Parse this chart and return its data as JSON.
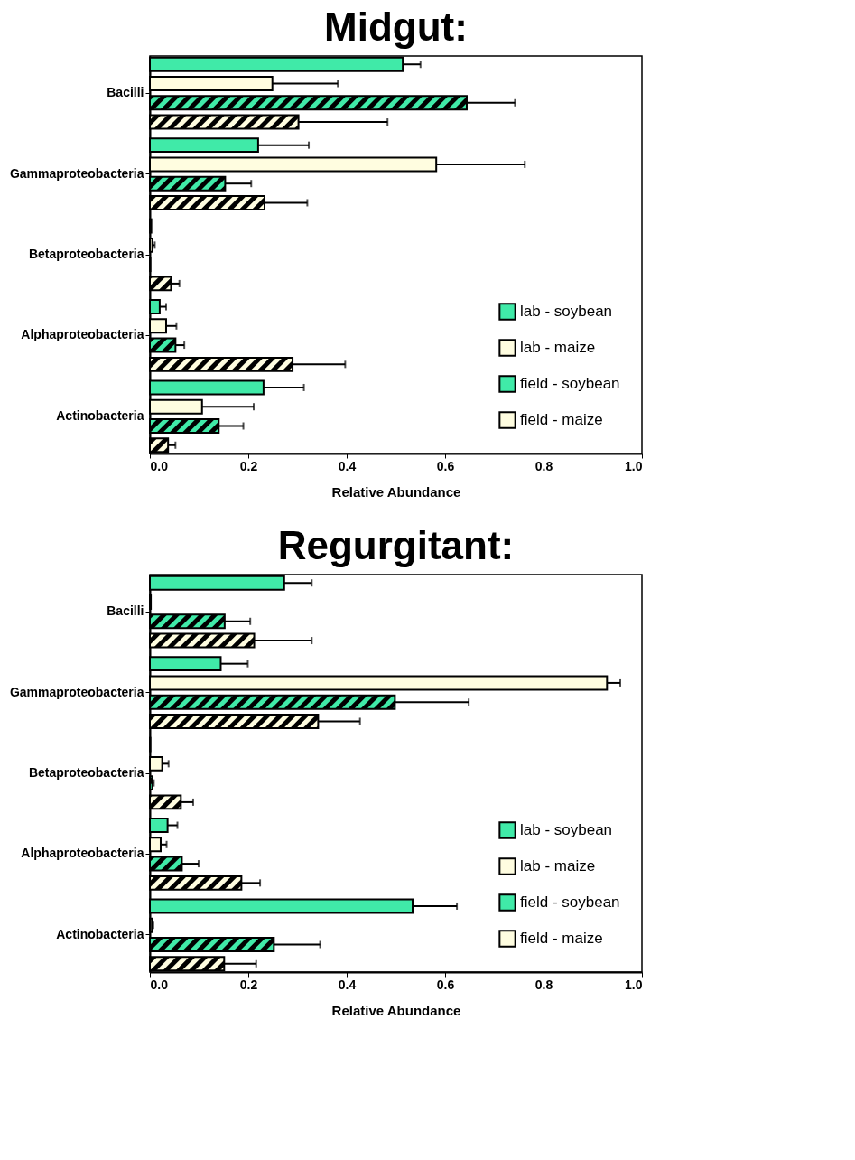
{
  "chart_data": [
    {
      "type": "bar",
      "orientation": "horizontal",
      "title": "Midgut:",
      "xlabel": "Relative Abundance",
      "categories": [
        "Bacilli",
        "Gammaproteobacteria",
        "Betaproteobacteria",
        "Alphaproteobacteria",
        "Actinobacteria"
      ],
      "xlim": [
        0,
        1
      ],
      "xticks": [
        {
          "value": 0,
          "label": "0.0"
        },
        {
          "value": 0.2,
          "label": "0.2"
        },
        {
          "value": 0.4,
          "label": "0.4"
        },
        {
          "value": 0.6,
          "label": "0.6"
        },
        {
          "value": 0.8,
          "label": "0.8"
        },
        {
          "value": 1,
          "label": "1.0"
        }
      ],
      "legend": "bottom right",
      "grid": false,
      "series": [
        {
          "name": "lab - soybean",
          "color": "#40eaa8",
          "values": [
            0.514,
            0.22,
            0.003,
            0.02,
            0.231
          ],
          "errors": [
            [
              0.514,
              0.55
            ],
            [
              0.22,
              0.323
            ],
            null,
            [
              0.02,
              0.033
            ],
            [
              0.231,
              0.313
            ]
          ]
        },
        {
          "name": "lab - maize",
          "color": "#fffde0",
          "values": [
            0.249,
            0.582,
            0.005,
            0.033,
            0.106
          ],
          "errors": [
            [
              0.249,
              0.382
            ],
            [
              0.582,
              0.762
            ],
            [
              0.005,
              0.01
            ],
            [
              0.033,
              0.054
            ],
            [
              0.106,
              0.211
            ]
          ]
        },
        {
          "name": "field - soybean",
          "color": "#40eaa8",
          "values": [
            0.644,
            0.153,
            0.001,
            0.052,
            0.14
          ],
          "errors": [
            [
              0.644,
              0.742
            ],
            [
              0.153,
              0.206
            ],
            null,
            [
              0.052,
              0.07
            ],
            [
              0.14,
              0.19
            ]
          ]
        },
        {
          "name": "field - maize",
          "color": "#fffde0",
          "values": [
            0.302,
            0.233,
            0.043,
            0.29,
            0.037
          ],
          "errors": [
            [
              0.302,
              0.483
            ],
            [
              0.233,
              0.32
            ],
            [
              0.043,
              0.06
            ],
            [
              0.29,
              0.397
            ],
            [
              0.037,
              0.052
            ]
          ]
        }
      ]
    },
    {
      "type": "bar",
      "orientation": "horizontal",
      "title": "Regurgitant:",
      "xlabel": "Relative Abundance",
      "categories": [
        "Bacilli",
        "Gammaproteobacteria",
        "Betaproteobacteria",
        "Alphaproteobacteria",
        "Actinobacteria"
      ],
      "xlim": [
        0,
        1
      ],
      "xticks": [
        {
          "value": 0,
          "label": "0.0"
        },
        {
          "value": 0.2,
          "label": "0.2"
        },
        {
          "value": 0.4,
          "label": "0.4"
        },
        {
          "value": 0.6,
          "label": "0.6"
        },
        {
          "value": 0.8,
          "label": "0.8"
        },
        {
          "value": 1,
          "label": "1.0"
        }
      ],
      "legend": "bottom right",
      "grid": false,
      "series": [
        {
          "name": "lab - soybean",
          "color": "#40eaa8",
          "values": [
            0.273,
            0.144,
            0.001,
            0.036,
            0.534
          ],
          "errors": [
            [
              0.273,
              0.329
            ],
            [
              0.144,
              0.199
            ],
            null,
            [
              0.036,
              0.056
            ],
            [
              0.534,
              0.624
            ]
          ]
        },
        {
          "name": "lab - maize",
          "color": "#fffde0",
          "values": [
            0.002,
            0.929,
            0.025,
            0.022,
            0.004
          ],
          "errors": [
            null,
            [
              0.929,
              0.956
            ],
            [
              0.025,
              0.038
            ],
            [
              0.022,
              0.034
            ],
            [
              0.004,
              0.007
            ]
          ]
        },
        {
          "name": "field - soybean",
          "color": "#40eaa8",
          "values": [
            0.152,
            0.498,
            0.005,
            0.065,
            0.252
          ],
          "errors": [
            [
              0.152,
              0.204
            ],
            [
              0.498,
              0.648
            ],
            [
              0.005,
              0.008
            ],
            [
              0.065,
              0.099
            ],
            [
              0.252,
              0.346
            ]
          ]
        },
        {
          "name": "field - maize",
          "color": "#fffde0",
          "values": [
            0.212,
            0.342,
            0.063,
            0.186,
            0.151
          ],
          "errors": [
            [
              0.212,
              0.329
            ],
            [
              0.342,
              0.427
            ],
            [
              0.063,
              0.088
            ],
            [
              0.186,
              0.224
            ],
            [
              0.151,
              0.216
            ]
          ]
        }
      ]
    }
  ]
}
